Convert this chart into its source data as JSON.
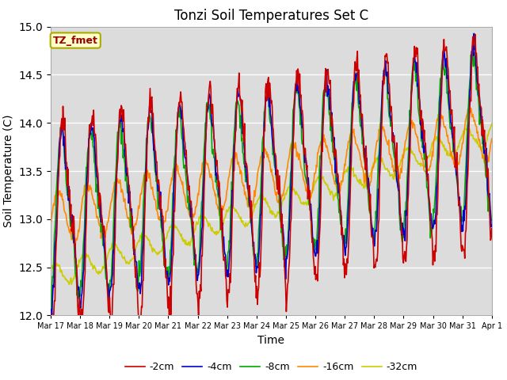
{
  "title": "Tonzi Soil Temperatures Set C",
  "xlabel": "Time",
  "ylabel": "Soil Temperature (C)",
  "ylim": [
    12.0,
    15.0
  ],
  "yticks": [
    12.0,
    12.5,
    13.0,
    13.5,
    14.0,
    14.5,
    15.0
  ],
  "xtick_labels": [
    "Mar 17",
    "Mar 18",
    "Mar 19",
    "Mar 20",
    "Mar 21",
    "Mar 22",
    "Mar 23",
    "Mar 24",
    "Mar 25",
    "Mar 26",
    "Mar 27",
    "Mar 28",
    "Mar 29",
    "Mar 30",
    "Mar 31",
    "Apr 1"
  ],
  "legend_labels": [
    "-2cm",
    "-4cm",
    "-8cm",
    "-16cm",
    "-32cm"
  ],
  "legend_colors": [
    "#cc0000",
    "#0000cc",
    "#00aa00",
    "#ff8800",
    "#cccc00"
  ],
  "annotation_text": "TZ_fmet",
  "annotation_color": "#990000",
  "annotation_bg": "#ffffcc",
  "title_fontsize": 12,
  "axis_fontsize": 10,
  "legend_fontsize": 9,
  "grid_color": "#cccccc",
  "bg_color": "#dcdcdc"
}
